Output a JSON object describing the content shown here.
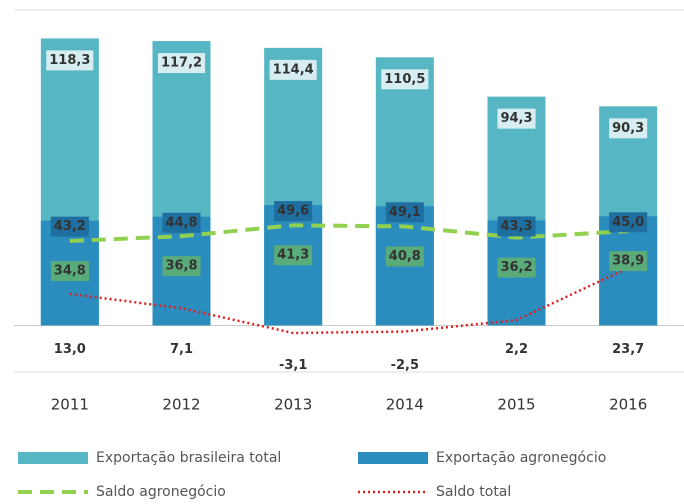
{
  "chart_data": {
    "type": "combo",
    "categories": [
      "2011",
      "2012",
      "2013",
      "2014",
      "2015",
      "2016"
    ],
    "ylim": [
      -20,
      130
    ],
    "series": [
      {
        "name": "Exportação brasileira total",
        "type": "bar",
        "color": "#56b6c4",
        "label_box": "#d6eef1",
        "values": [
          118.3,
          117.2,
          114.4,
          110.5,
          94.3,
          90.3
        ],
        "value_labels": [
          "118,3",
          "117,2",
          "114,4",
          "110,5",
          "94,3",
          "90,3"
        ]
      },
      {
        "name": "Exportação agronegócio",
        "type": "bar",
        "color": "#2b8cbe",
        "label_box": "#1f6ea0",
        "values": [
          43.2,
          44.8,
          49.6,
          49.1,
          43.3,
          45.0
        ],
        "value_labels": [
          "43,2",
          "44,8",
          "49,6",
          "49,1",
          "43,3",
          "45,0"
        ]
      },
      {
        "name": "Saldo agronegócio",
        "type": "line",
        "style": "dashed",
        "color": "#92d050",
        "label_box": "#5aab7a",
        "values": [
          34.8,
          36.8,
          41.3,
          40.8,
          36.2,
          38.9
        ],
        "value_labels": [
          "34,8",
          "36,8",
          "41,3",
          "40,8",
          "36,2",
          "38,9"
        ]
      },
      {
        "name": "Saldo total",
        "type": "line",
        "style": "dotted",
        "color": "#e02020",
        "values": [
          13.0,
          7.1,
          -3.1,
          -2.5,
          2.2,
          23.7
        ],
        "value_labels": [
          "13,0",
          "7,1",
          "-3,1",
          "-2,5",
          "2,2",
          "23,7"
        ],
        "value_label_colors": [
          "#222222",
          "#d02020",
          "#d02020",
          "#d02020",
          "#222222",
          "#222222"
        ]
      }
    ]
  }
}
